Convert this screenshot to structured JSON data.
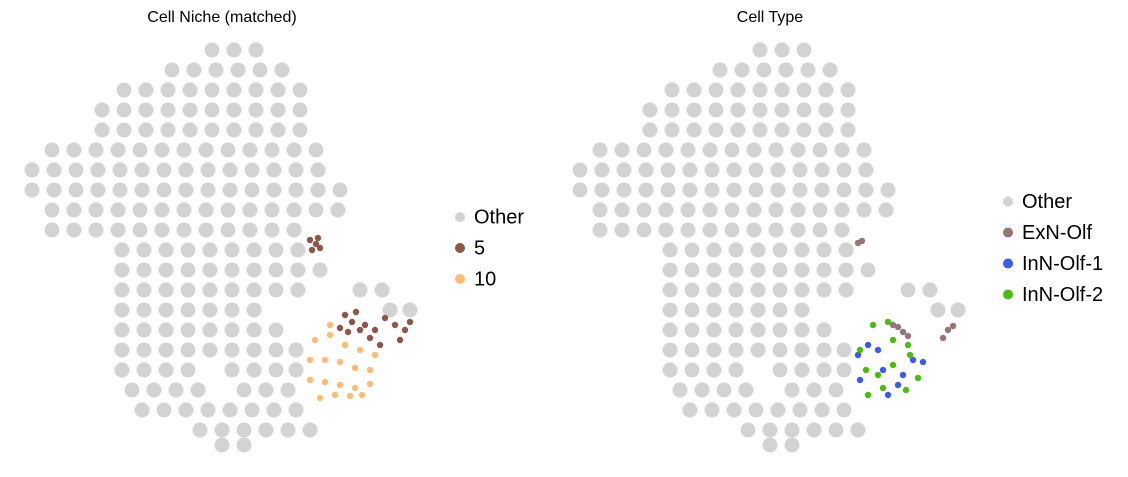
{
  "chart_data": [
    {
      "type": "scatter",
      "title": "Cell Niche (matched)",
      "xlim": [
        20,
        420
      ],
      "ylim": [
        455,
        40
      ],
      "legend": "right",
      "series": [
        {
          "name": "Other",
          "color": "#d3d3d3",
          "x": [
            212,
            234,
            256,
            172,
            194,
            216,
            238,
            260,
            282,
            124,
            146,
            168,
            190,
            212,
            234,
            256,
            278,
            300,
            102,
            124,
            146,
            168,
            190,
            212,
            234,
            256,
            278,
            300,
            102,
            124,
            146,
            168,
            190,
            212,
            234,
            256,
            278,
            300,
            52,
            74,
            96,
            118,
            140,
            162,
            184,
            206,
            228,
            250,
            272,
            294,
            316,
            32,
            54,
            76,
            98,
            120,
            142,
            164,
            186,
            208,
            230,
            252,
            274,
            296,
            318,
            32,
            54,
            76,
            98,
            120,
            142,
            164,
            186,
            208,
            230,
            252,
            274,
            296,
            318,
            340,
            52,
            74,
            96,
            118,
            140,
            162,
            184,
            206,
            228,
            250,
            272,
            294,
            316,
            338,
            52,
            74,
            96,
            118,
            140,
            162,
            184,
            206,
            228,
            250,
            272,
            294,
            122,
            144,
            166,
            188,
            210,
            232,
            254,
            276,
            298,
            122,
            144,
            166,
            188,
            210,
            232,
            254,
            276,
            298,
            320,
            122,
            144,
            166,
            188,
            210,
            232,
            254,
            276,
            298,
            360,
            382,
            122,
            144,
            166,
            188,
            210,
            232,
            254,
            390,
            410,
            122,
            144,
            166,
            188,
            210,
            232,
            254,
            276,
            122,
            144,
            166,
            188,
            210,
            232,
            254,
            276,
            296,
            122,
            144,
            166,
            188,
            232,
            254,
            276,
            296,
            132,
            154,
            176,
            198,
            244,
            266,
            288,
            142,
            164,
            186,
            208,
            230,
            252,
            274,
            296,
            200,
            222,
            244,
            266,
            288,
            310,
            222,
            244
          ],
          "y": [
            50,
            50,
            50,
            70,
            70,
            70,
            70,
            70,
            70,
            90,
            90,
            90,
            90,
            90,
            90,
            90,
            90,
            90,
            110,
            110,
            110,
            110,
            110,
            110,
            110,
            110,
            110,
            110,
            130,
            130,
            130,
            130,
            130,
            130,
            130,
            130,
            130,
            130,
            150,
            150,
            150,
            150,
            150,
            150,
            150,
            150,
            150,
            150,
            150,
            150,
            150,
            170,
            170,
            170,
            170,
            170,
            170,
            170,
            170,
            170,
            170,
            170,
            170,
            170,
            170,
            190,
            190,
            190,
            190,
            190,
            190,
            190,
            190,
            190,
            190,
            190,
            190,
            190,
            190,
            190,
            210,
            210,
            210,
            210,
            210,
            210,
            210,
            210,
            210,
            210,
            210,
            210,
            210,
            210,
            230,
            230,
            230,
            230,
            230,
            230,
            230,
            230,
            230,
            230,
            230,
            230,
            250,
            250,
            250,
            250,
            250,
            250,
            250,
            250,
            250,
            270,
            270,
            270,
            270,
            270,
            270,
            270,
            270,
            270,
            270,
            290,
            290,
            290,
            290,
            290,
            290,
            290,
            290,
            290,
            290,
            290,
            310,
            310,
            310,
            310,
            310,
            310,
            310,
            310,
            310,
            330,
            330,
            330,
            330,
            330,
            330,
            330,
            330,
            350,
            350,
            350,
            350,
            350,
            350,
            350,
            350,
            350,
            370,
            370,
            370,
            370,
            370,
            370,
            370,
            370,
            390,
            390,
            390,
            390,
            390,
            390,
            390,
            410,
            410,
            410,
            410,
            410,
            410,
            410,
            410,
            430,
            430,
            430,
            430,
            430,
            430,
            445,
            445
          ]
        },
        {
          "name": "5",
          "color": "#8c564b",
          "x": [
            310,
            316,
            320,
            312,
            318,
            345,
            352,
            360,
            348,
            370,
            380,
            356,
            395,
            405,
            410,
            400,
            365,
            375,
            340,
            385
          ],
          "y": [
            240,
            244,
            248,
            250,
            238,
            315,
            322,
            330,
            332,
            338,
            345,
            312,
            325,
            330,
            322,
            340,
            325,
            330,
            328,
            318
          ]
        },
        {
          "name": "10",
          "color": "#ffbb78",
          "x": [
            315,
            330,
            345,
            360,
            375,
            310,
            325,
            340,
            355,
            370,
            310,
            325,
            340,
            355,
            370,
            320,
            335,
            350,
            362,
            330
          ],
          "y": [
            340,
            335,
            345,
            350,
            355,
            360,
            360,
            362,
            368,
            370,
            380,
            382,
            385,
            388,
            384,
            398,
            395,
            396,
            395,
            325
          ]
        }
      ]
    },
    {
      "type": "scatter",
      "title": "Cell Type",
      "xlim": [
        20,
        420
      ],
      "ylim": [
        455,
        40
      ],
      "legend": "right",
      "series": [
        {
          "name": "Other",
          "color": "#d3d3d3",
          "x": [
            212,
            234,
            256,
            172,
            194,
            216,
            238,
            260,
            282,
            124,
            146,
            168,
            190,
            212,
            234,
            256,
            278,
            300,
            102,
            124,
            146,
            168,
            190,
            212,
            234,
            256,
            278,
            300,
            102,
            124,
            146,
            168,
            190,
            212,
            234,
            256,
            278,
            300,
            52,
            74,
            96,
            118,
            140,
            162,
            184,
            206,
            228,
            250,
            272,
            294,
            316,
            32,
            54,
            76,
            98,
            120,
            142,
            164,
            186,
            208,
            230,
            252,
            274,
            296,
            318,
            32,
            54,
            76,
            98,
            120,
            142,
            164,
            186,
            208,
            230,
            252,
            274,
            296,
            318,
            340,
            52,
            74,
            96,
            118,
            140,
            162,
            184,
            206,
            228,
            250,
            272,
            294,
            316,
            338,
            52,
            74,
            96,
            118,
            140,
            162,
            184,
            206,
            228,
            250,
            272,
            294,
            122,
            144,
            166,
            188,
            210,
            232,
            254,
            276,
            298,
            122,
            144,
            166,
            188,
            210,
            232,
            254,
            276,
            298,
            320,
            122,
            144,
            166,
            188,
            210,
            232,
            254,
            276,
            298,
            360,
            382,
            122,
            144,
            166,
            188,
            210,
            232,
            254,
            390,
            410,
            122,
            144,
            166,
            188,
            210,
            232,
            254,
            276,
            122,
            144,
            166,
            188,
            210,
            232,
            254,
            276,
            296,
            122,
            144,
            166,
            188,
            232,
            254,
            276,
            296,
            132,
            154,
            176,
            198,
            244,
            266,
            288,
            142,
            164,
            186,
            208,
            230,
            252,
            274,
            296,
            200,
            222,
            244,
            266,
            288,
            310,
            222,
            244
          ],
          "y": [
            50,
            50,
            50,
            70,
            70,
            70,
            70,
            70,
            70,
            90,
            90,
            90,
            90,
            90,
            90,
            90,
            90,
            90,
            110,
            110,
            110,
            110,
            110,
            110,
            110,
            110,
            110,
            110,
            130,
            130,
            130,
            130,
            130,
            130,
            130,
            130,
            130,
            130,
            150,
            150,
            150,
            150,
            150,
            150,
            150,
            150,
            150,
            150,
            150,
            150,
            150,
            170,
            170,
            170,
            170,
            170,
            170,
            170,
            170,
            170,
            170,
            170,
            170,
            170,
            170,
            190,
            190,
            190,
            190,
            190,
            190,
            190,
            190,
            190,
            190,
            190,
            190,
            190,
            190,
            190,
            210,
            210,
            210,
            210,
            210,
            210,
            210,
            210,
            210,
            210,
            210,
            210,
            210,
            210,
            230,
            230,
            230,
            230,
            230,
            230,
            230,
            230,
            230,
            230,
            230,
            230,
            250,
            250,
            250,
            250,
            250,
            250,
            250,
            250,
            250,
            270,
            270,
            270,
            270,
            270,
            270,
            270,
            270,
            270,
            270,
            290,
            290,
            290,
            290,
            290,
            290,
            290,
            290,
            290,
            290,
            290,
            310,
            310,
            310,
            310,
            310,
            310,
            310,
            310,
            310,
            330,
            330,
            330,
            330,
            330,
            330,
            330,
            330,
            350,
            350,
            350,
            350,
            350,
            350,
            350,
            350,
            350,
            370,
            370,
            370,
            370,
            370,
            370,
            370,
            370,
            390,
            390,
            390,
            390,
            390,
            390,
            390,
            410,
            410,
            410,
            410,
            410,
            410,
            410,
            410,
            430,
            430,
            430,
            430,
            430,
            430,
            445,
            445
          ]
        },
        {
          "name": "ExN-Olf",
          "color": "#957577",
          "x": [
            310,
            314,
            350,
            355,
            345,
            400,
            405,
            395,
            360
          ],
          "y": [
            243,
            241,
            327,
            332,
            325,
            330,
            326,
            338,
            336
          ]
        },
        {
          "name": "InN-Olf-1",
          "color": "#3a5be8",
          "x": [
            310,
            320,
            335,
            350,
            365,
            375,
            312,
            340,
            355,
            330
          ],
          "y": [
            355,
            345,
            370,
            385,
            360,
            362,
            380,
            395,
            375,
            350
          ]
        },
        {
          "name": "InN-Olf-2",
          "color": "#4dbb13",
          "x": [
            325,
            340,
            345,
            360,
            318,
            330,
            345,
            358,
            370,
            335,
            320,
            362,
            312
          ],
          "y": [
            325,
            322,
            340,
            345,
            370,
            375,
            365,
            390,
            378,
            388,
            395,
            355,
            350
          ]
        }
      ]
    }
  ]
}
